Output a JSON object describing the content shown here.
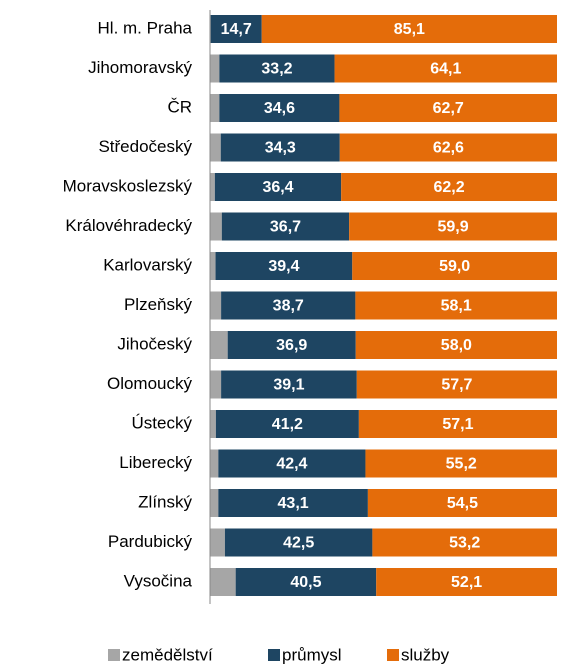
{
  "chart_data": {
    "type": "stacked-bar-horizontal",
    "categories": [
      "Hl. m. Praha",
      "Jihomoravský",
      "ČR",
      "Středočeský",
      "Moravskoslezský",
      "Královéhradecký",
      "Karlovarský",
      "Plzeňský",
      "Jihočeský",
      "Olomoucký",
      "Ústecký",
      "Liberecký",
      "Zlínský",
      "Pardubický",
      "Vysočina"
    ],
    "xlim": [
      0,
      100
    ],
    "series": [
      {
        "name": "zemědělství",
        "color": "#a6a6a6",
        "values": [
          0.2,
          2.7,
          2.7,
          3.1,
          1.4,
          3.4,
          1.6,
          3.2,
          5.1,
          3.2,
          1.7,
          2.4,
          2.4,
          4.3,
          7.4
        ]
      },
      {
        "name": "průmysl",
        "color": "#1e4562",
        "values": [
          14.7,
          33.2,
          34.6,
          34.3,
          36.4,
          36.7,
          39.4,
          38.7,
          36.9,
          39.1,
          41.2,
          42.4,
          43.1,
          42.5,
          40.5
        ],
        "value_labels": [
          "14,7",
          "33,2",
          "34,6",
          "34,3",
          "36,4",
          "36,7",
          "39,4",
          "38,7",
          "36,9",
          "39,1",
          "41,2",
          "42,4",
          "43,1",
          "42,5",
          "40,5"
        ]
      },
      {
        "name": "služby",
        "color": "#e46c0a",
        "values": [
          85.1,
          64.1,
          62.7,
          62.6,
          62.2,
          59.9,
          59.0,
          58.1,
          58.0,
          57.7,
          57.1,
          55.2,
          54.5,
          53.2,
          52.1
        ],
        "value_labels": [
          "85,1",
          "64,1",
          "62,7",
          "62,6",
          "62,2",
          "59,9",
          "59,0",
          "58,1",
          "58,0",
          "57,7",
          "57,1",
          "55,2",
          "54,5",
          "53,2",
          "52,1"
        ]
      }
    ]
  }
}
